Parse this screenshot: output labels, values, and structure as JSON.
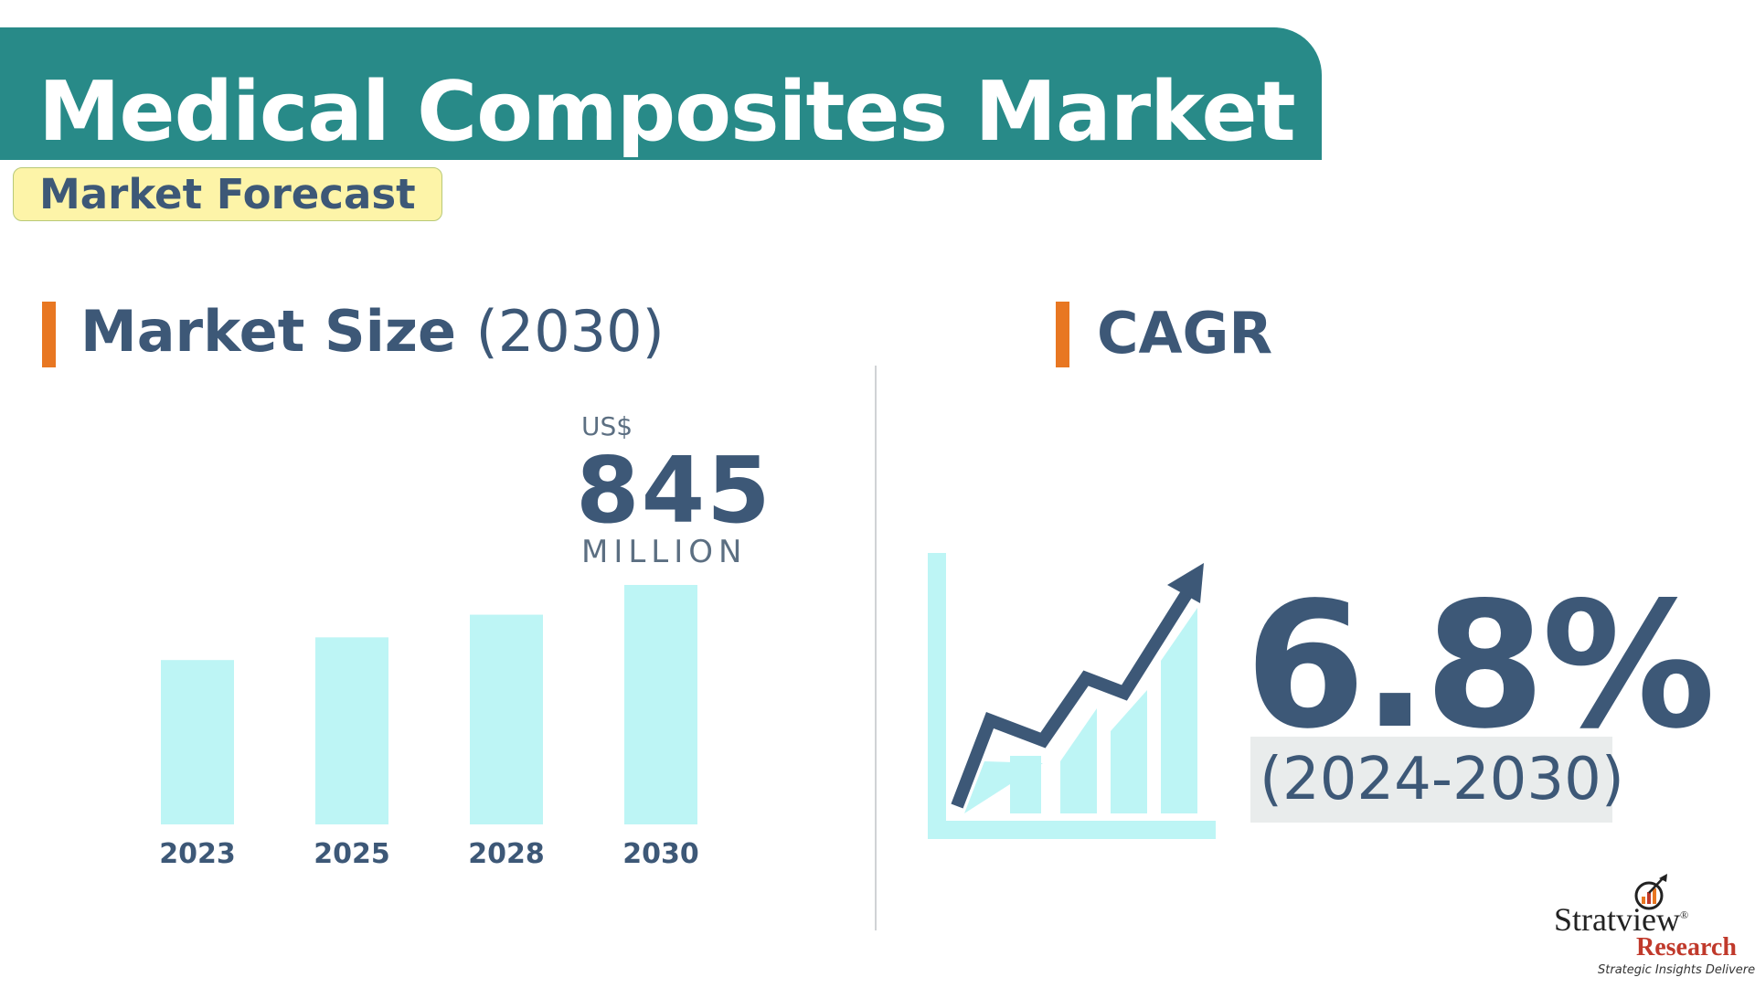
{
  "header": {
    "title": "Medical Composites Market",
    "subtitle": "Market Forecast"
  },
  "market_size": {
    "heading": "Market Size",
    "heading_year": "(2030)",
    "unit_prefix": "US$",
    "value": "845",
    "unit_suffix": "MILLION"
  },
  "cagr": {
    "heading": "CAGR",
    "value": "6.8%",
    "period": "(2024-2030)"
  },
  "colors": {
    "title_band": "#288a88",
    "subtitle_badge": "#fdf4a8",
    "accent_bar": "#e87722",
    "text_primary": "#3d5877",
    "bar_fill": "#bdf5f5",
    "period_box": "#e9ecec"
  },
  "logo": {
    "name": "Stratview",
    "registered": "®",
    "research": "Research",
    "tagline": "Strategic Insights Delivered"
  },
  "chart_data": {
    "type": "bar",
    "categories": [
      "2023",
      "2025",
      "2028",
      "2030"
    ],
    "values": [
      580,
      660,
      740,
      845
    ],
    "title": "",
    "xlabel": "",
    "ylabel": "",
    "ylim": [
      0,
      845
    ],
    "grid": false,
    "data_labels": [
      "",
      "",
      "",
      "US$ 845 MILLION"
    ]
  }
}
